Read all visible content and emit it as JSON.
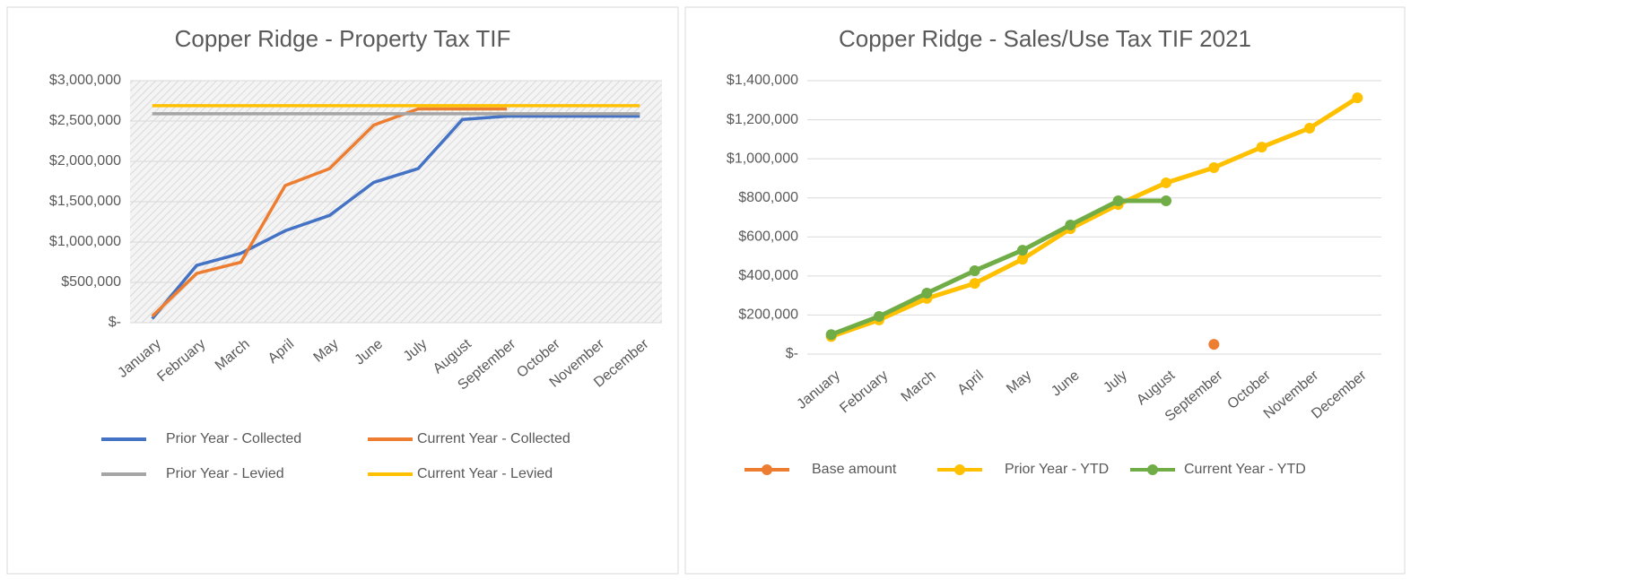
{
  "chart_data": [
    {
      "type": "line",
      "title": "Copper Ridge - Property Tax TIF",
      "categories": [
        "January",
        "February",
        "March",
        "April",
        "May",
        "June",
        "July",
        "August",
        "September",
        "October",
        "November",
        "December"
      ],
      "series": [
        {
          "name": "Prior Year - Collected",
          "color": "#4472c4",
          "values": [
            50000,
            710000,
            860000,
            1140000,
            1330000,
            1740000,
            1910000,
            2520000,
            2560000,
            2560000,
            2560000,
            2560000
          ]
        },
        {
          "name": "Current Year - Collected",
          "color": "#ed7d31",
          "values": [
            80000,
            610000,
            750000,
            1700000,
            1910000,
            2450000,
            2650000,
            2650000,
            2650000,
            null,
            null,
            null
          ]
        },
        {
          "name": "Prior Year - Levied",
          "color": "#a5a5a5",
          "values": [
            2590000,
            2590000,
            2590000,
            2590000,
            2590000,
            2590000,
            2590000,
            2590000,
            2590000,
            2590000,
            2590000,
            2590000
          ]
        },
        {
          "name": "Current Year - Levied",
          "color": "#ffc000",
          "values": [
            2690000,
            2690000,
            2690000,
            2690000,
            2690000,
            2690000,
            2690000,
            2690000,
            2690000,
            2690000,
            2690000,
            2690000
          ]
        }
      ],
      "ylim": [
        0,
        3000000
      ],
      "yticks": [
        {
          "value": 0,
          "label": "$-"
        },
        {
          "value": 500000,
          "label": "$500,000"
        },
        {
          "value": 1000000,
          "label": "$1,000,000"
        },
        {
          "value": 1500000,
          "label": "$1,500,000"
        },
        {
          "value": 2000000,
          "label": "$2,000,000"
        },
        {
          "value": 2500000,
          "label": "$2,500,000"
        },
        {
          "value": 3000000,
          "label": "$3,000,000"
        }
      ],
      "grid": true,
      "markers": false,
      "legend": "bottom"
    },
    {
      "type": "line",
      "title": "Copper Ridge - Sales/Use Tax TIF 2021",
      "categories": [
        "January",
        "February",
        "March",
        "April",
        "May",
        "June",
        "July",
        "August",
        "September",
        "October",
        "November",
        "December"
      ],
      "series": [
        {
          "name": "Base amount",
          "color": "#ed7d31",
          "values": [
            null,
            null,
            null,
            null,
            null,
            null,
            null,
            null,
            50000,
            null,
            null,
            null
          ]
        },
        {
          "name": "Prior Year - YTD",
          "color": "#ffc000",
          "values": [
            90000,
            175000,
            285000,
            362000,
            486000,
            642000,
            766000,
            877000,
            955000,
            1060000,
            1157000,
            1312000
          ]
        },
        {
          "name": "Current Year - YTD",
          "color": "#70ad47",
          "values": [
            100000,
            193000,
            312000,
            427000,
            532000,
            661000,
            785000,
            785000,
            null,
            null,
            null,
            null
          ]
        }
      ],
      "ylim": [
        0,
        1400000
      ],
      "yticks": [
        {
          "value": 0,
          "label": "$-"
        },
        {
          "value": 200000,
          "label": "$200,000"
        },
        {
          "value": 400000,
          "label": "$400,000"
        },
        {
          "value": 600000,
          "label": "$600,000"
        },
        {
          "value": 800000,
          "label": "$800,000"
        },
        {
          "value": 1000000,
          "label": "$1,000,000"
        },
        {
          "value": 1200000,
          "label": "$1,200,000"
        },
        {
          "value": 1400000,
          "label": "$1,400,000"
        }
      ],
      "grid": true,
      "markers": true,
      "legend": "bottom"
    }
  ]
}
